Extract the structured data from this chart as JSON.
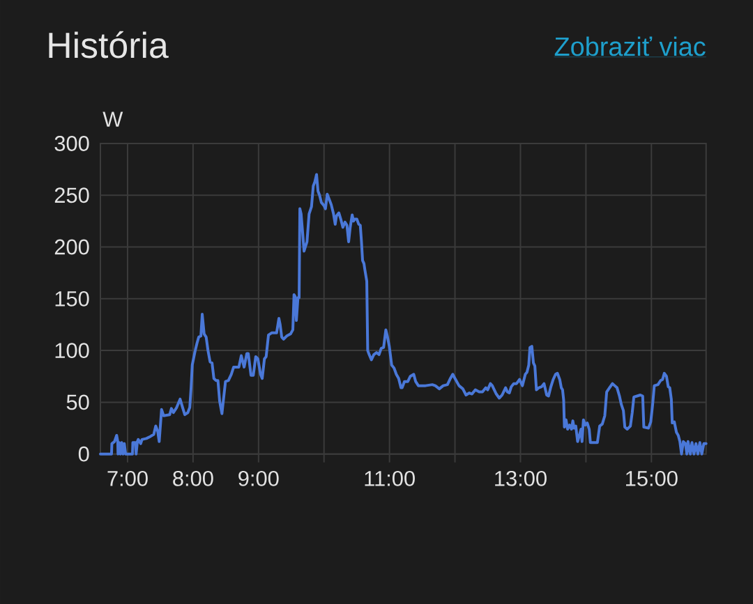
{
  "chart_data": {
    "type": "line",
    "title": "História",
    "ylabel": "W",
    "annotations": [
      "Zobraziť viac"
    ],
    "x": [
      6.585,
      6.755,
      6.76,
      6.8,
      6.833,
      6.85,
      6.854,
      6.87,
      6.89,
      6.91,
      6.93,
      6.95,
      6.97,
      7.075,
      7.08,
      7.12,
      7.13,
      7.15,
      7.163,
      7.2,
      7.22,
      7.288,
      7.35,
      7.4,
      7.43,
      7.46,
      7.483,
      7.519,
      7.55,
      7.643,
      7.67,
      7.7,
      7.75,
      7.802,
      7.84,
      7.874,
      7.92,
      7.95,
      7.97,
      7.988,
      8.01,
      8.033,
      8.06,
      8.087,
      8.12,
      8.14,
      8.169,
      8.2,
      8.228,
      8.26,
      8.29,
      8.318,
      8.35,
      8.38,
      8.406,
      8.441,
      8.46,
      8.495,
      8.54,
      8.584,
      8.62,
      8.7,
      8.736,
      8.78,
      8.821,
      8.843,
      8.885,
      8.92,
      8.957,
      8.99,
      9.03,
      9.056,
      9.09,
      9.116,
      9.152,
      9.2,
      9.276,
      9.311,
      9.33,
      9.354,
      9.383,
      9.43,
      9.489,
      9.524,
      9.542,
      9.56,
      9.578,
      9.602,
      9.62,
      9.631,
      9.65,
      9.673,
      9.695,
      9.719,
      9.74,
      9.772,
      9.809,
      9.836,
      9.86,
      9.886,
      9.908,
      9.932,
      9.96,
      10.0,
      10.022,
      10.049,
      10.08,
      10.11,
      10.145,
      10.171,
      10.19,
      10.227,
      10.26,
      10.288,
      10.32,
      10.35,
      10.376,
      10.4,
      10.43,
      10.45,
      10.47,
      10.501,
      10.53,
      10.554,
      10.571,
      10.589,
      10.61,
      10.624,
      10.653,
      10.667,
      10.69,
      10.724,
      10.76,
      10.802,
      10.84,
      10.873,
      10.91,
      10.944,
      10.97,
      10.997,
      11.033,
      11.07,
      11.104,
      11.14,
      11.175,
      11.193,
      11.228,
      11.28,
      11.317,
      11.37,
      11.4,
      11.441,
      11.55,
      11.654,
      11.7,
      11.761,
      11.82,
      11.885,
      11.93,
      11.966,
      12.0,
      12.062,
      12.12,
      12.169,
      12.22,
      12.26,
      12.311,
      12.37,
      12.42,
      12.471,
      12.5,
      12.541,
      12.57,
      12.6,
      12.631,
      12.677,
      12.72,
      12.773,
      12.8,
      12.83,
      12.86,
      12.897,
      12.94,
      12.986,
      13.03,
      13.074,
      13.1,
      13.127,
      13.145,
      13.174,
      13.198,
      13.22,
      13.244,
      13.28,
      13.323,
      13.36,
      13.401,
      13.429,
      13.465,
      13.5,
      13.536,
      13.564,
      13.6,
      13.624,
      13.643,
      13.66,
      13.671,
      13.696,
      13.72,
      13.75,
      13.78,
      13.8,
      13.819,
      13.845,
      13.873,
      13.9,
      13.925,
      13.94,
      13.962,
      13.99,
      14.02,
      14.05,
      14.068,
      14.175,
      14.21,
      14.25,
      14.288,
      14.317,
      14.36,
      14.405,
      14.44,
      14.475,
      14.512,
      14.54,
      14.572,
      14.594,
      14.63,
      14.679,
      14.707,
      14.732,
      14.78,
      14.831,
      14.867,
      14.884,
      14.955,
      14.99,
      15.019,
      15.044,
      15.1,
      15.14,
      15.17,
      15.197,
      15.23,
      15.257,
      15.28,
      15.304,
      15.318,
      15.35,
      15.382,
      15.41,
      15.435,
      15.46,
      15.488,
      15.52,
      15.541,
      15.559,
      15.594,
      15.62,
      15.65,
      15.68,
      15.71,
      15.74,
      15.77,
      15.8,
      15.835
    ],
    "values": [
      0,
      0,
      10,
      12,
      18,
      12,
      0,
      11,
      0,
      11,
      0,
      10,
      0,
      0,
      11,
      11,
      0,
      12,
      14,
      10,
      14,
      15,
      17,
      19,
      27,
      22,
      12,
      43,
      37,
      38,
      44,
      40,
      45,
      53,
      45,
      38,
      40,
      45,
      64,
      86,
      93,
      100,
      107,
      113,
      114,
      135,
      116,
      113,
      100,
      89,
      88,
      73,
      71,
      71,
      51,
      39,
      50,
      70,
      71,
      77,
      84,
      84,
      95,
      84,
      97,
      97,
      76,
      76,
      94,
      92,
      77,
      73,
      92,
      94,
      115,
      117,
      117,
      131,
      125,
      113,
      111,
      114,
      116,
      120,
      154,
      152,
      129,
      151,
      151,
      237,
      232,
      214,
      196,
      201,
      205,
      232,
      239,
      259,
      263,
      270,
      254,
      250,
      243,
      240,
      237,
      251,
      246,
      241,
      232,
      222,
      230,
      233,
      226,
      219,
      224,
      221,
      205,
      219,
      231,
      225,
      227,
      227,
      222,
      221,
      206,
      187,
      184,
      178,
      167,
      100,
      96,
      91,
      96,
      98,
      96,
      102,
      103,
      120,
      113,
      104,
      86,
      83,
      77,
      73,
      64,
      64,
      70,
      70,
      75,
      77,
      70,
      66,
      66,
      67,
      66,
      63,
      66,
      67,
      73,
      77,
      73,
      66,
      63,
      57,
      59,
      58,
      62,
      60,
      60,
      64,
      62,
      68,
      66,
      62,
      58,
      54,
      57,
      64,
      60,
      59,
      65,
      68,
      68,
      72,
      66,
      77,
      79,
      86,
      103,
      104,
      88,
      85,
      62,
      64,
      65,
      68,
      57,
      56,
      65,
      72,
      77,
      78,
      72,
      64,
      62,
      52,
      26,
      33,
      24,
      28,
      24,
      32,
      25,
      27,
      12,
      18,
      24,
      12,
      33,
      28,
      30,
      24,
      11,
      11,
      27,
      29,
      37,
      60,
      64,
      68,
      66,
      64,
      56,
      48,
      42,
      26,
      24,
      27,
      40,
      55,
      56,
      57,
      56,
      26,
      25,
      31,
      48,
      66,
      67,
      71,
      72,
      78,
      75,
      65,
      64,
      53,
      30,
      31,
      21,
      18,
      12,
      0,
      12,
      10,
      0,
      12,
      0,
      11,
      0,
      10,
      0,
      11,
      0,
      10,
      10
    ],
    "color": "#4a78d8",
    "xlim": [
      6.585,
      15.835
    ],
    "ylim": [
      0,
      300
    ],
    "xticks": [
      {
        "value": 7,
        "label": "7:00"
      },
      {
        "value": 8,
        "label": "8:00"
      },
      {
        "value": 9,
        "label": "9:00"
      },
      {
        "value": 10,
        "label": null
      },
      {
        "value": 11,
        "label": "11:00"
      },
      {
        "value": 12,
        "label": null
      },
      {
        "value": 13,
        "label": "13:00"
      },
      {
        "value": 14,
        "label": null
      },
      {
        "value": 15,
        "label": "15:00"
      }
    ],
    "yticks": [
      0,
      50,
      100,
      150,
      200,
      250,
      300
    ],
    "grid": true
  }
}
